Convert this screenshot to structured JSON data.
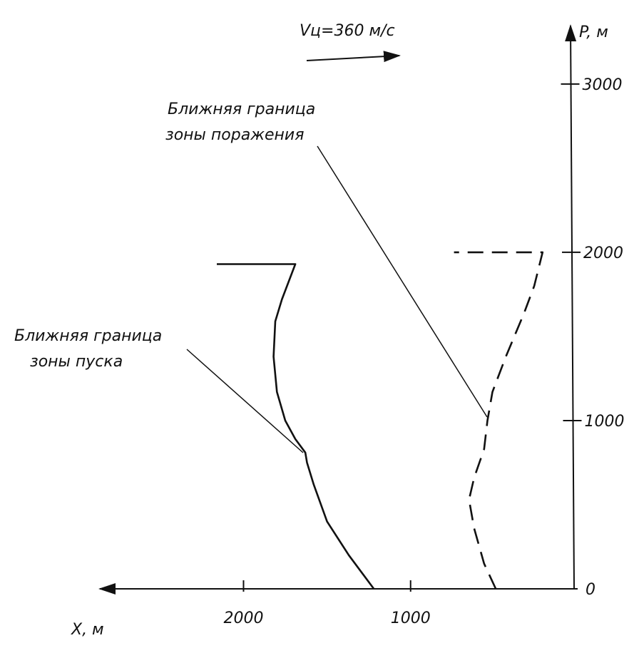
{
  "chart_data": {
    "type": "line",
    "velocity_label": "Vц=360 м/с",
    "xlabel": "X, м",
    "ylabel": "P, м",
    "x_reversed": true,
    "xlim": [
      0,
      2860
    ],
    "ylim": [
      0,
      3330
    ],
    "xticks": [
      1000,
      2000
    ],
    "yticks": [
      0,
      1000,
      2000,
      3000
    ],
    "series": [
      {
        "color": "#111111",
        "dashed": false,
        "x": [
          1220,
          1370,
          1500,
          1580,
          1620,
          1630,
          1690,
          1750,
          1800,
          1820,
          1810,
          1770,
          1690,
          2160
        ],
        "values": [
          0,
          200,
          400,
          620,
          750,
          810,
          890,
          1000,
          1170,
          1380,
          1590,
          1720,
          1930,
          1930
        ]
      },
      {
        "color": "#111111",
        "dashed": true,
        "x": [
          490,
          560,
          620,
          650,
          620,
          560,
          540,
          510,
          430,
          320,
          260,
          210,
          740
        ],
        "values": [
          0,
          150,
          360,
          530,
          660,
          830,
          1000,
          1170,
          1380,
          1640,
          1800,
          2000,
          2000
        ]
      }
    ],
    "annotations": [
      {
        "lines": [
          "Ближняя граница",
          "зоны поражения"
        ]
      },
      {
        "lines": [
          "Ближняя граница",
          "зоны пуска"
        ]
      }
    ]
  }
}
